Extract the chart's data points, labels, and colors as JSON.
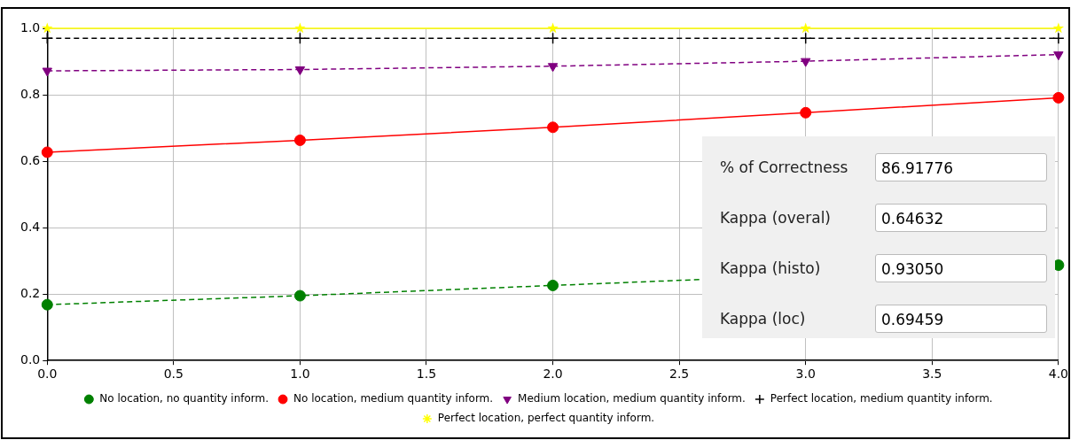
{
  "chart_data": {
    "type": "line",
    "x": [
      0,
      1,
      2,
      3,
      4
    ],
    "series": [
      {
        "name": "No location, no quantity inform.",
        "color": "#008000",
        "marker": "circle",
        "line_style": "dashed",
        "values": [
          0.168,
          0.195,
          0.226,
          null,
          0.287
        ]
      },
      {
        "name": "No location, medium quantity inform.",
        "color": "#ff0000",
        "marker": "circle",
        "line_style": "solid",
        "values": [
          0.627,
          0.663,
          0.702,
          0.746,
          0.791
        ]
      },
      {
        "name": "Medium location, medium quantity inform.",
        "color": "#800080",
        "marker": "triangle",
        "line_style": "dashed",
        "values": [
          0.872,
          0.876,
          0.886,
          0.901,
          0.921
        ]
      },
      {
        "name": "Perfect location, medium quantity inform.",
        "color": "#000000",
        "marker": "cross",
        "line_style": "dashed",
        "values": [
          0.97,
          0.97,
          0.97,
          0.97,
          0.97
        ]
      },
      {
        "name": "Perfect location, perfect quantity inform.",
        "color": "#ffff00",
        "marker": "star",
        "line_style": "solid",
        "values": [
          1.0,
          1.0,
          1.0,
          1.0,
          1.0
        ]
      }
    ],
    "xlim": [
      0,
      4
    ],
    "xticks": [
      {
        "value": 0,
        "label": "0.0"
      },
      0.5,
      {
        "value": 1,
        "label": "1.0"
      },
      1.5,
      {
        "value": 2,
        "label": "2.0"
      },
      2.5,
      {
        "value": 3,
        "label": "3.0"
      },
      3.5,
      {
        "value": 4,
        "label": "4.0"
      }
    ],
    "ylim": [
      0,
      1
    ],
    "yticks": [
      {
        "value": 0,
        "label": "0.0"
      },
      0.2,
      0.4,
      0.6,
      0.8,
      {
        "value": 1,
        "label": "1.0"
      }
    ],
    "grid": true,
    "legend": "bottom",
    "annotations": [
      "% of Correctness",
      "86.91776",
      "Kappa (overal)",
      "0.64632",
      "Kappa (histo)",
      "0.93050",
      "Kappa (loc)",
      "0.69459"
    ]
  }
}
